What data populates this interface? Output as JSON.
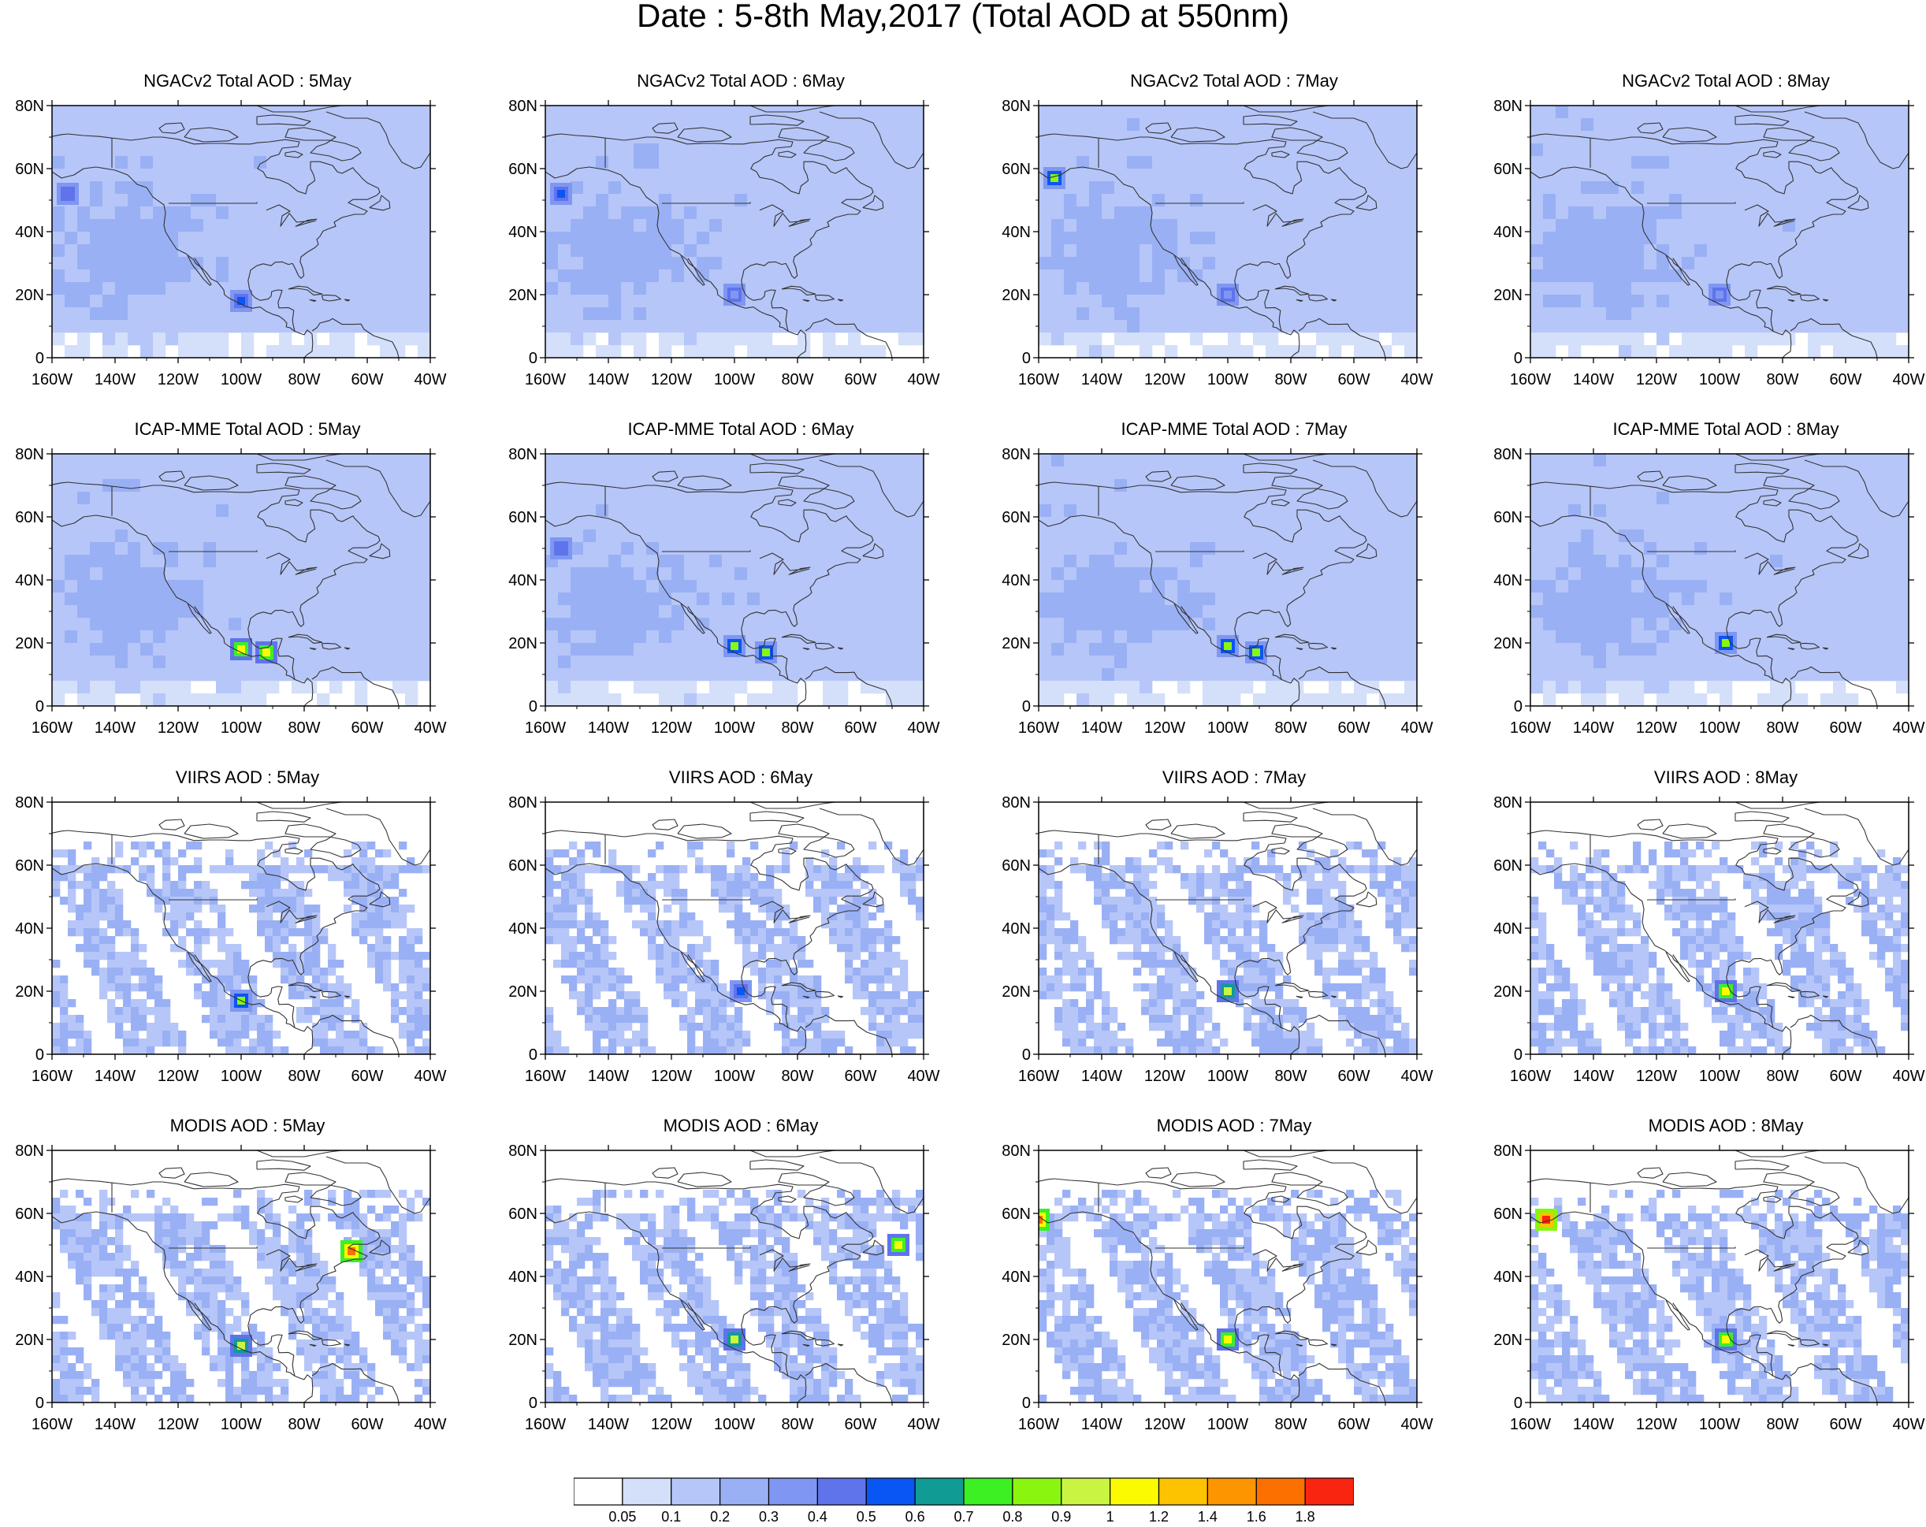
{
  "title": "Date : 5-8th May,2017 (Total AOD at 550nm)",
  "chart_data": {
    "type": "heatmap",
    "title": "Date : 5-8th May,2017 (Total AOD at 550nm)",
    "lat_ticks": [
      "80N",
      "60N",
      "40N",
      "20N",
      "0"
    ],
    "lon_ticks": [
      "160W",
      "140W",
      "120W",
      "100W",
      "80W",
      "60W",
      "40W"
    ],
    "lat_range": [
      0,
      80
    ],
    "lon_range": [
      -160,
      -40
    ],
    "rows": [
      "NGACv2 Total AOD",
      "ICAP-MME Total AOD",
      "VIIRS AOD",
      "MODIS AOD"
    ],
    "columns": [
      "5May",
      "6May",
      "7May",
      "8May"
    ],
    "panels": [
      {
        "title": "NGACv2 Total AOD : 5May",
        "kind": "model",
        "hotspots": [
          {
            "lon": -100,
            "lat": 18,
            "aod": 0.5
          },
          {
            "lon": -155,
            "lat": 52,
            "aod": 0.4
          }
        ]
      },
      {
        "title": "NGACv2 Total AOD : 6May",
        "kind": "model",
        "hotspots": [
          {
            "lon": -155,
            "lat": 52,
            "aod": 0.5
          },
          {
            "lon": -100,
            "lat": 20,
            "aod": 0.35
          }
        ]
      },
      {
        "title": "NGACv2 Total AOD : 7May",
        "kind": "model",
        "hotspots": [
          {
            "lon": -155,
            "lat": 57,
            "aod": 0.8
          },
          {
            "lon": -100,
            "lat": 20,
            "aod": 0.35
          }
        ]
      },
      {
        "title": "NGACv2 Total AOD : 8May",
        "kind": "model",
        "hotspots": [
          {
            "lon": -100,
            "lat": 20,
            "aod": 0.3
          }
        ]
      },
      {
        "title": "ICAP-MME Total AOD : 5May",
        "kind": "model",
        "hotspots": [
          {
            "lon": -100,
            "lat": 18,
            "aod": 1.0
          },
          {
            "lon": -92,
            "lat": 17,
            "aod": 1.0
          }
        ]
      },
      {
        "title": "ICAP-MME Total AOD : 6May",
        "kind": "model",
        "hotspots": [
          {
            "lon": -100,
            "lat": 19,
            "aod": 0.8
          },
          {
            "lon": -90,
            "lat": 17,
            "aod": 0.8
          },
          {
            "lon": -155,
            "lat": 50,
            "aod": 0.4
          }
        ]
      },
      {
        "title": "ICAP-MME Total AOD : 7May",
        "kind": "model",
        "hotspots": [
          {
            "lon": -100,
            "lat": 19,
            "aod": 0.8
          },
          {
            "lon": -91,
            "lat": 17,
            "aod": 0.8
          }
        ]
      },
      {
        "title": "ICAP-MME Total AOD : 8May",
        "kind": "model",
        "hotspots": [
          {
            "lon": -98,
            "lat": 20,
            "aod": 0.8
          }
        ]
      },
      {
        "title": "VIIRS AOD : 5May",
        "kind": "satellite",
        "hotspots": [
          {
            "lon": -100,
            "lat": 17,
            "aod": 0.8
          }
        ]
      },
      {
        "title": "VIIRS AOD : 6May",
        "kind": "satellite",
        "hotspots": [
          {
            "lon": -98,
            "lat": 20,
            "aod": 0.5
          }
        ]
      },
      {
        "title": "VIIRS AOD : 7May",
        "kind": "satellite",
        "hotspots": [
          {
            "lon": -100,
            "lat": 20,
            "aod": 0.9
          }
        ]
      },
      {
        "title": "VIIRS AOD : 8May",
        "kind": "satellite",
        "hotspots": [
          {
            "lon": -98,
            "lat": 20,
            "aod": 1.0
          }
        ]
      },
      {
        "title": "MODIS AOD : 5May",
        "kind": "satellite",
        "hotspots": [
          {
            "lon": -65,
            "lat": 48,
            "aod": 1.6
          },
          {
            "lon": -100,
            "lat": 18,
            "aod": 0.9
          }
        ]
      },
      {
        "title": "MODIS AOD : 6May",
        "kind": "satellite",
        "hotspots": [
          {
            "lon": -100,
            "lat": 20,
            "aod": 0.9
          },
          {
            "lon": -48,
            "lat": 50,
            "aod": 1.0
          }
        ]
      },
      {
        "title": "MODIS AOD : 7May",
        "kind": "satellite",
        "hotspots": [
          {
            "lon": -100,
            "lat": 20,
            "aod": 1.0
          },
          {
            "lon": -160,
            "lat": 58,
            "aod": 1.6
          }
        ]
      },
      {
        "title": "MODIS AOD : 8May",
        "kind": "satellite",
        "hotspots": [
          {
            "lon": -155,
            "lat": 58,
            "aod": 1.8
          },
          {
            "lon": -98,
            "lat": 20,
            "aod": 1.0
          }
        ]
      }
    ],
    "colorbar": {
      "labels": [
        "0.05",
        "0.1",
        "0.2",
        "0.3",
        "0.4",
        "0.5",
        "0.6",
        "0.7",
        "0.8",
        "0.9",
        "1",
        "1.2",
        "1.4",
        "1.6",
        "1.8"
      ],
      "colors": [
        "#ffffff",
        "#d4dffa",
        "#b6c6f8",
        "#9ab0f5",
        "#7f97f2",
        "#5f73eb",
        "#0a56f5",
        "#119b95",
        "#3cf024",
        "#8af50e",
        "#c9f542",
        "#fcfa00",
        "#fdc200",
        "#fd9500",
        "#fc7000",
        "#fa2510"
      ]
    },
    "grid": false
  }
}
